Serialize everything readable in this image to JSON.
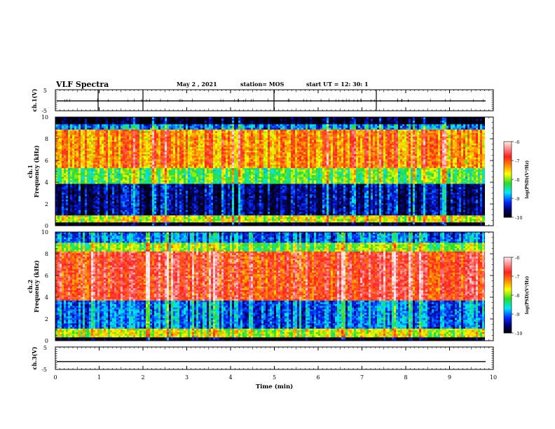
{
  "header": {
    "title": "VLF Spectra",
    "date": "May 2 , 2021",
    "station": "station= MOS",
    "start": "start UT = 12: 30: 1"
  },
  "chart_data": [
    {
      "type": "line",
      "panel": "ch1-voltage",
      "ylabel": "ch.1(V)",
      "ylim": [
        -5,
        5
      ],
      "yticks": [
        "5",
        "-5"
      ],
      "x": [
        0,
        10
      ],
      "values": [
        -0.3,
        -0.3
      ],
      "note_series": "flat trace near 0 V"
    },
    {
      "type": "heatmap",
      "panel": "ch1-spectrogram",
      "ylabel": "ch.1 Frequency (kHz)",
      "ylim": [
        0,
        10
      ],
      "yticks": [
        "0",
        "2",
        "4",
        "6",
        "8",
        "10"
      ],
      "xlim": [
        0,
        10
      ],
      "colorbar": {
        "label": "log(PSD)(V²/Hz)",
        "ticks": [
          "-6",
          "-7",
          "-8",
          "-9",
          "-10"
        ],
        "range": [
          -10,
          -6
        ]
      },
      "bands": [
        {
          "from": 0,
          "to": 0.4,
          "level": -10
        },
        {
          "from": 0.4,
          "to": 1.0,
          "level": -7.8
        },
        {
          "from": 1.0,
          "to": 3.9,
          "level": -9.6
        },
        {
          "from": 3.9,
          "to": 5.3,
          "level": -8.2
        },
        {
          "from": 5.3,
          "to": 8.8,
          "level": -7.3
        },
        {
          "from": 8.8,
          "to": 9.4,
          "level": -9.0
        },
        {
          "from": 9.4,
          "to": 10,
          "level": -10
        }
      ]
    },
    {
      "type": "heatmap",
      "panel": "ch2-spectrogram",
      "ylabel": "ch.2 Frequency (kHz)",
      "ylim": [
        0,
        10
      ],
      "yticks": [
        "0",
        "2",
        "4",
        "6",
        "8",
        "10"
      ],
      "xlim": [
        0,
        10
      ],
      "colorbar": {
        "label": "log(PSD)(V²/Hz)",
        "ticks": [
          "-6",
          "-7",
          "-8",
          "-9",
          "-10"
        ],
        "range": [
          -10,
          -6
        ]
      },
      "bands": [
        {
          "from": 0,
          "to": 0.4,
          "level": -10
        },
        {
          "from": 0.4,
          "to": 1.2,
          "level": -7.8
        },
        {
          "from": 1.2,
          "to": 3.7,
          "level": -9.0
        },
        {
          "from": 3.7,
          "to": 8.2,
          "level": -6.8
        },
        {
          "from": 8.2,
          "to": 9.0,
          "level": -8.0
        },
        {
          "from": 9.0,
          "to": 10,
          "level": -9.0
        }
      ]
    },
    {
      "type": "line",
      "panel": "ch3-voltage",
      "ylabel": "ch.3(V)",
      "ylim": [
        -5,
        5
      ],
      "yticks": [
        "5",
        "-5"
      ],
      "x": [
        0,
        10
      ],
      "values": [
        -1.5,
        -1.5
      ],
      "xlabel": "Time (min)",
      "xticks": [
        "0",
        "1",
        "2",
        "3",
        "4",
        "5",
        "6",
        "7",
        "8",
        "9",
        "10"
      ]
    }
  ],
  "colors": {
    "red": "#ff1a1a",
    "orange": "#ff9900",
    "yellow": "#ffff00",
    "green": "#22dd22",
    "cyan": "#00ffff",
    "blue": "#0033ff",
    "navy": "#000066",
    "black": "#000000"
  }
}
